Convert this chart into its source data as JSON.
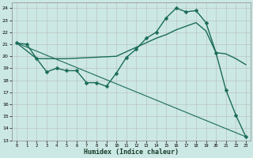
{
  "xlabel": "Humidex (Indice chaleur)",
  "background_color": "#cce8e4",
  "grid_color": "#b0b0b0",
  "line_color": "#1a6b5a",
  "xlim": [
    -0.5,
    23.5
  ],
  "ylim": [
    13,
    24.5
  ],
  "yticks": [
    13,
    14,
    15,
    16,
    17,
    18,
    19,
    20,
    21,
    22,
    23,
    24
  ],
  "xticks": [
    0,
    1,
    2,
    3,
    4,
    5,
    6,
    7,
    8,
    9,
    10,
    11,
    12,
    13,
    14,
    15,
    16,
    17,
    18,
    19,
    20,
    21,
    22,
    23
  ],
  "series": [
    {
      "x": [
        0,
        1,
        2,
        3,
        4,
        5,
        6,
        7,
        8,
        9,
        10,
        11,
        12,
        13,
        14,
        15,
        16,
        17,
        18,
        19,
        20,
        21,
        22,
        23
      ],
      "y": [
        21.1,
        21.0,
        19.8,
        18.7,
        19.0,
        18.8,
        18.8,
        17.8,
        17.8,
        17.5,
        18.6,
        19.9,
        20.6,
        21.5,
        22.0,
        23.2,
        24.0,
        23.7,
        23.8,
        22.8,
        20.3,
        17.2,
        15.1,
        13.3
      ],
      "marker": "D",
      "markersize": 2.5,
      "linewidth": 1.0,
      "linestyle": "-"
    },
    {
      "x": [
        0,
        23
      ],
      "y": [
        21.1,
        13.3
      ],
      "marker": null,
      "markersize": 0,
      "linewidth": 0.8,
      "linestyle": "-"
    },
    {
      "x": [
        0,
        2,
        5,
        10,
        14,
        15,
        16,
        17,
        18,
        19,
        20,
        21,
        22,
        23
      ],
      "y": [
        21.1,
        19.8,
        19.8,
        20.0,
        21.5,
        21.8,
        22.2,
        22.5,
        22.8,
        22.1,
        20.3,
        20.2,
        19.8,
        19.3
      ],
      "marker": null,
      "markersize": 0,
      "linewidth": 1.0,
      "linestyle": "-"
    }
  ]
}
